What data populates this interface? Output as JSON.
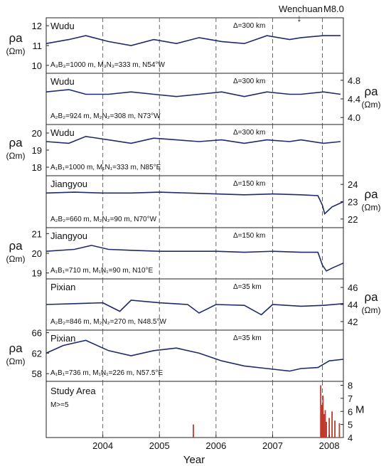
{
  "annotation": {
    "event": "Wenchuan",
    "magnitude": "M8.0",
    "arrow": "↓"
  },
  "xaxis": {
    "label": "Year",
    "ticks": [
      "2004",
      "2005",
      "2006",
      "2007",
      "2008"
    ],
    "range": [
      2003.5,
      2008.75
    ]
  },
  "event_year": 2008.38,
  "dashed_years": [
    2004.5,
    2005.5,
    2006.5,
    2007.5,
    2008.38
  ],
  "chart_data": [
    {
      "type": "line",
      "station": "Wudu",
      "config": "A₃B₃=1000 m, M₃N₃=333 m, N54°W",
      "distance": "Δ=300 km",
      "ylabel": "ρa",
      "yunit": "(Ωm)",
      "yside": "left",
      "yticks": [
        "12",
        "11",
        "10"
      ],
      "ylim": [
        9.6,
        12.4
      ],
      "x": [
        2003.5,
        2003.9,
        2004.2,
        2004.6,
        2005.0,
        2005.4,
        2005.8,
        2006.2,
        2006.6,
        2007.0,
        2007.4,
        2007.8,
        2008.0,
        2008.4,
        2008.7
      ],
      "y": [
        11.1,
        11.3,
        11.5,
        11.2,
        11.0,
        11.3,
        11.1,
        11.4,
        11.2,
        11.1,
        11.5,
        11.3,
        11.4,
        11.5,
        11.5
      ]
    },
    {
      "type": "line",
      "station": "Wudu",
      "config": "A₂B₂=924 m, M₂N₂=308 m, N73°W",
      "distance": "Δ=300 km",
      "ylabel": "ρa",
      "yunit": "(Ωm)",
      "yside": "right",
      "yticks": [
        "4.8",
        "4.4",
        "4.0"
      ],
      "ylim": [
        3.85,
        4.95
      ],
      "x": [
        2003.5,
        2003.9,
        2004.2,
        2004.6,
        2005.0,
        2005.4,
        2005.8,
        2006.2,
        2006.6,
        2007.0,
        2007.4,
        2007.8,
        2008.0,
        2008.4,
        2008.7
      ],
      "y": [
        4.55,
        4.6,
        4.5,
        4.5,
        4.55,
        4.5,
        4.45,
        4.5,
        4.55,
        4.45,
        4.55,
        4.5,
        4.5,
        4.55,
        4.5
      ]
    },
    {
      "type": "line",
      "station": "Wudu",
      "config": "A₁B₁=1000 m, M₁N₁=333 m, N85°E",
      "distance": "Δ=300 km",
      "ylabel": "ρa",
      "yunit": "(Ωm)",
      "yside": "left",
      "yticks": [
        "20",
        "19",
        "18"
      ],
      "ylim": [
        17.5,
        20.5
      ],
      "x": [
        2003.5,
        2003.9,
        2004.2,
        2004.6,
        2005.0,
        2005.4,
        2005.8,
        2006.2,
        2006.6,
        2007.0,
        2007.4,
        2007.8,
        2008.0,
        2008.4,
        2008.7
      ],
      "y": [
        19.5,
        19.4,
        19.8,
        19.6,
        19.4,
        19.7,
        19.6,
        19.5,
        19.6,
        19.4,
        19.6,
        19.5,
        19.6,
        19.4,
        19.5
      ]
    },
    {
      "type": "line",
      "station": "Jiangyou",
      "config": "A₂B₂=660 m, M₂N₂=90 m, N70°W",
      "distance": "Δ=150 km",
      "ylabel": "ρa",
      "yunit": "(Ωm)",
      "yside": "right",
      "yticks": [
        "24",
        "23",
        "22"
      ],
      "ylim": [
        21.5,
        24.5
      ],
      "x": [
        2003.5,
        2004.0,
        2004.5,
        2005.0,
        2005.5,
        2006.0,
        2006.5,
        2007.0,
        2007.5,
        2008.0,
        2008.3,
        2008.38,
        2008.42,
        2008.55,
        2008.75
      ],
      "y": [
        23.5,
        23.55,
        23.5,
        23.5,
        23.55,
        23.5,
        23.45,
        23.4,
        23.45,
        23.4,
        23.35,
        22.8,
        22.3,
        22.7,
        23.0
      ]
    },
    {
      "type": "line",
      "station": "Jiangyou",
      "config": "A₁B₁=710 m, M₁N₁=90 m, N10°E",
      "distance": "Δ=150 km",
      "ylabel": "ρa",
      "yunit": "(Ωm)",
      "yside": "left",
      "yticks": [
        "21",
        "20",
        "19"
      ],
      "ylim": [
        18.7,
        21.3
      ],
      "x": [
        2003.5,
        2004.0,
        2004.3,
        2004.6,
        2005.0,
        2005.5,
        2006.0,
        2006.5,
        2007.0,
        2007.5,
        2008.0,
        2008.3,
        2008.38,
        2008.45,
        2008.55,
        2008.75
      ],
      "y": [
        20.1,
        20.2,
        20.4,
        20.2,
        20.15,
        20.1,
        20.1,
        20.1,
        20.05,
        20.1,
        20.05,
        20.05,
        19.4,
        19.1,
        19.25,
        19.5
      ]
    },
    {
      "type": "line",
      "station": "Pixian",
      "config": "A₂B₂=846 m, M₂N₂=270 m, N48.5°W",
      "distance": "Δ=35 km",
      "ylabel": "ρa",
      "yunit": "(Ωm)",
      "yside": "right",
      "yticks": [
        "46",
        "44",
        "42"
      ],
      "ylim": [
        41,
        47
      ],
      "x": [
        2003.5,
        2004.0,
        2004.5,
        2004.8,
        2005.0,
        2005.5,
        2006.0,
        2006.2,
        2006.5,
        2007.0,
        2007.3,
        2007.5,
        2008.0,
        2008.4,
        2008.75
      ],
      "y": [
        44.0,
        44.1,
        44.2,
        43.2,
        44.5,
        44.2,
        44.0,
        43.0,
        44.0,
        43.9,
        42.8,
        44.0,
        43.8,
        43.9,
        44.1
      ]
    },
    {
      "type": "line",
      "station": "Pixian",
      "config": "A₁B₁=736 m, M₁N₁=226 m, N57.5°E",
      "distance": "Δ=35 km",
      "ylabel": "ρa",
      "yunit": "(Ωm)",
      "yside": "left",
      "yticks": [
        "66",
        "62",
        "58"
      ],
      "ylim": [
        56.5,
        66.5
      ],
      "x": [
        2003.5,
        2003.8,
        2004.2,
        2004.6,
        2005.0,
        2005.4,
        2005.8,
        2006.2,
        2006.6,
        2007.0,
        2007.4,
        2007.8,
        2008.0,
        2008.3,
        2008.5,
        2008.75
      ],
      "y": [
        62.0,
        63.5,
        64.5,
        62.5,
        61.5,
        62.5,
        63.0,
        62.0,
        60.5,
        59.5,
        59.0,
        58.5,
        59.0,
        59.2,
        60.5,
        60.8
      ]
    },
    {
      "type": "bar",
      "title": "Study Area",
      "note": "M>=5",
      "ylabel": "M",
      "yside": "right",
      "yticks": [
        "8",
        "7",
        "6",
        "5",
        "4"
      ],
      "ylim": [
        4,
        8.3
      ],
      "x": [
        2006.1,
        2008.35,
        2008.37,
        2008.39,
        2008.41,
        2008.43,
        2008.45,
        2008.5,
        2008.55,
        2008.6,
        2008.68
      ],
      "values": [
        5.0,
        8.0,
        6.5,
        7.2,
        5.8,
        6.1,
        5.2,
        5.5,
        6.0,
        5.3,
        5.1
      ]
    }
  ]
}
